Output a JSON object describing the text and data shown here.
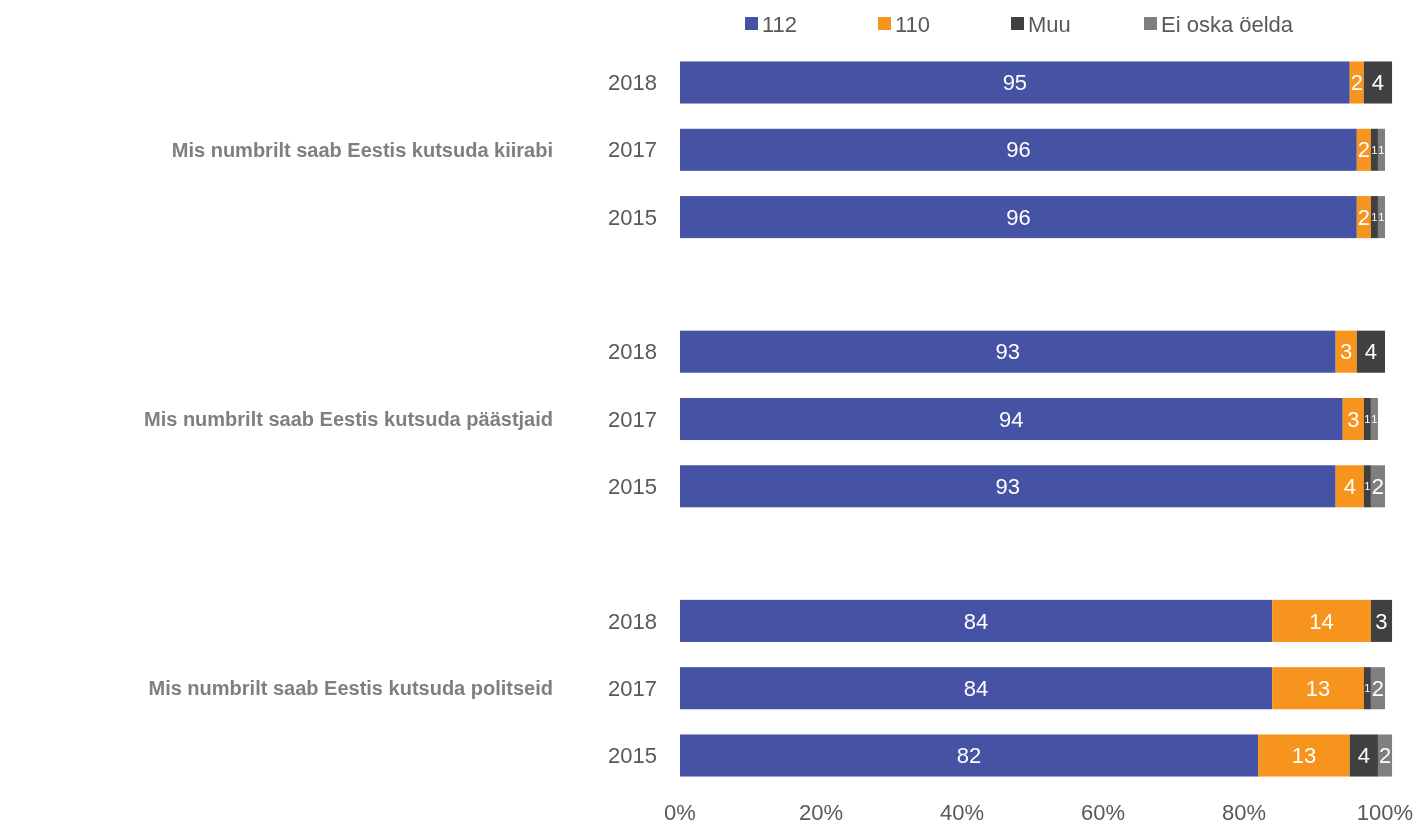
{
  "chart_data": {
    "type": "bar",
    "orientation": "horizontal",
    "stacked": true,
    "legend": "top",
    "data_labels": true,
    "categories": [
      "2018",
      "2017",
      "2015",
      null,
      "2018",
      "2017",
      "2015",
      null,
      "2018",
      "2017",
      "2015"
    ],
    "annotations": [
      "Mis numbrilt saab Eestis kutsuda kiirabi",
      "Mis numbrilt saab Eestis kutsuda päästjaid",
      "Mis numbrilt saab Eestis kutsuda politseid"
    ],
    "series": [
      {
        "name": "112",
        "color": "#4652a3",
        "values": [
          95,
          96,
          96,
          null,
          93,
          94,
          93,
          null,
          84,
          84,
          82
        ]
      },
      {
        "name": "110",
        "color": "#f7941d",
        "values": [
          2,
          2,
          2,
          null,
          3,
          3,
          4,
          null,
          14,
          13,
          13
        ]
      },
      {
        "name": "Muu",
        "color": "#404040",
        "values": [
          4,
          1,
          1,
          null,
          4,
          1,
          1,
          null,
          3,
          1,
          4
        ]
      },
      {
        "name": "Ei oska öelda",
        "color": "#7f7f7f",
        "values": [
          null,
          1,
          1,
          null,
          null,
          1,
          2,
          null,
          null,
          2,
          2
        ]
      }
    ],
    "xlim": [
      0,
      102
    ],
    "xticks": [
      {
        "value": 0,
        "label": "0%"
      },
      {
        "value": 20,
        "label": "20%"
      },
      {
        "value": 40,
        "label": "40%"
      },
      {
        "value": 60,
        "label": "60%"
      },
      {
        "value": 80,
        "label": "80%"
      },
      {
        "value": 100,
        "label": "100%"
      }
    ]
  }
}
